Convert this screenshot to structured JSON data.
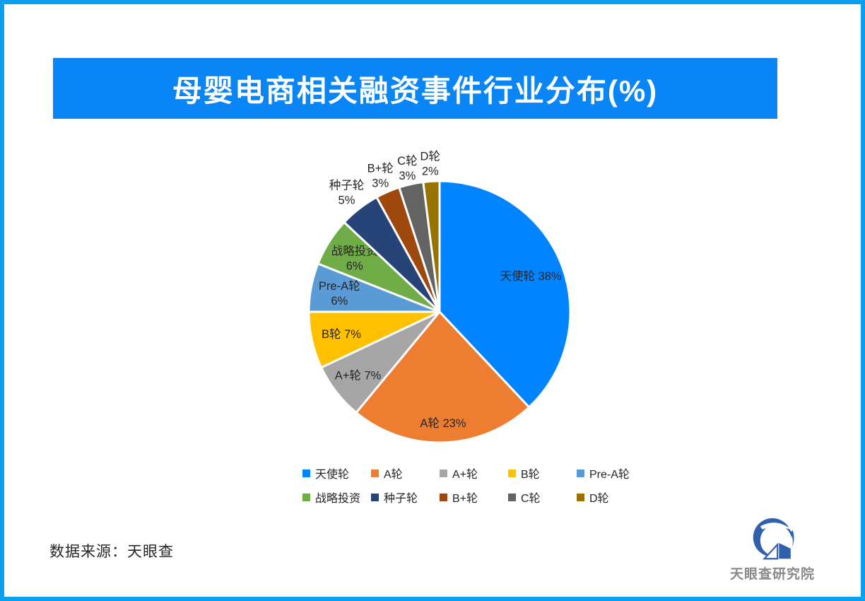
{
  "title": "母婴电商相关融资事件行业分布(%)",
  "source_note": "数据来源：天眼查",
  "logo": {
    "text": "天眼查研究院"
  },
  "colors": {
    "frame": "#0b9ff0",
    "banner_bg": "#0a85f6",
    "banner_text": "#ffffff",
    "label_text": "#262626",
    "logo_blue": "#3161ad"
  },
  "chart_data": {
    "type": "pie",
    "title": "母婴电商相关融资事件行业分布(%)",
    "start_angle_deg": 0,
    "direction": "clockwise",
    "legend_position": "bottom",
    "slice_border_color": "#ffffff",
    "series": [
      {
        "name": "天使轮",
        "value": 38,
        "color": "#0084ff",
        "label_placement": "inside",
        "label_radius_factor": 0.75,
        "label_lines": 1
      },
      {
        "name": "A轮",
        "value": 23,
        "color": "#ed7d31",
        "label_placement": "inside",
        "label_radius_factor": 0.85,
        "label_lines": 1
      },
      {
        "name": "A+轮",
        "value": 7,
        "color": "#a6a6a6",
        "label_placement": "inside",
        "label_radius_factor": 0.79,
        "label_lines": 1
      },
      {
        "name": "B轮",
        "value": 7,
        "color": "#ffc000",
        "label_placement": "inside",
        "label_radius_factor": 0.77,
        "label_lines": 1
      },
      {
        "name": "Pre-A轮",
        "value": 6,
        "color": "#5b9bd5",
        "label_placement": "inside",
        "label_radius_factor": 0.78,
        "label_lines": 2
      },
      {
        "name": "战略投资",
        "value": 6,
        "color": "#70ad47",
        "label_placement": "inside",
        "label_radius_factor": 0.77,
        "label_lines": 2
      },
      {
        "name": "种子轮",
        "value": 5,
        "color": "#264478",
        "label_placement": "outside",
        "label_radius_factor": 1.16,
        "label_lines": 2
      },
      {
        "name": "B+轮",
        "value": 3,
        "color": "#9e480e",
        "label_placement": "outside",
        "label_radius_factor": 1.14,
        "label_lines": 2
      },
      {
        "name": "C轮",
        "value": 3,
        "color": "#636363",
        "label_placement": "outside",
        "label_radius_factor": 1.13,
        "label_lines": 2
      },
      {
        "name": "D轮",
        "value": 2,
        "color": "#997300",
        "label_placement": "outside",
        "label_radius_factor": 1.14,
        "label_lines": 2
      }
    ]
  }
}
